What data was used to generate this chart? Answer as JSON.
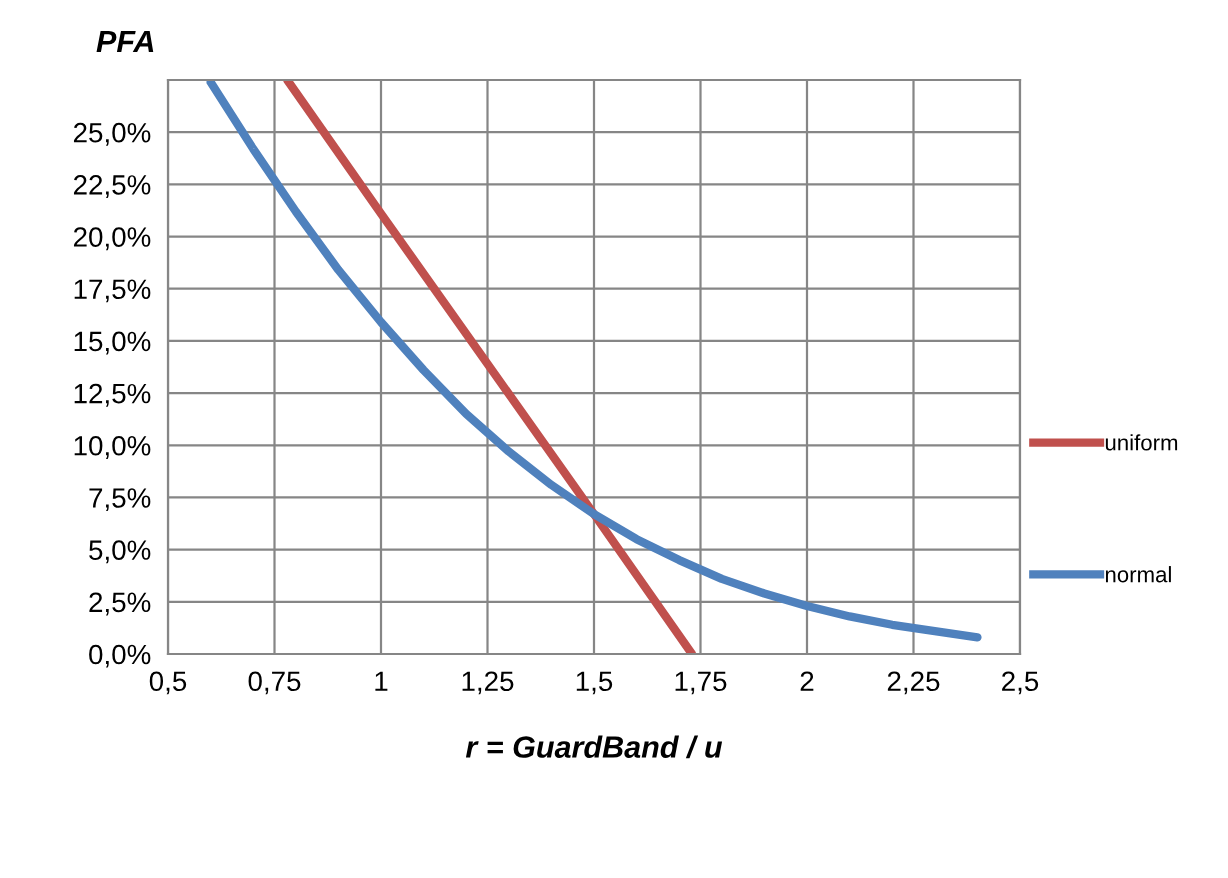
{
  "chart_data": {
    "type": "line",
    "ylabel": "PFA",
    "xlabel": "r = GuardBand / u",
    "series": [
      {
        "name": "uniform",
        "color": "#c0504d",
        "x": [
          0.78,
          1.0,
          1.25,
          1.5,
          1.73
        ],
        "values": [
          27.5,
          21.1,
          13.9,
          6.7,
          0.0
        ]
      },
      {
        "name": "normal",
        "color": "#4f81bd",
        "x": [
          0.6,
          0.7,
          0.8,
          0.9,
          1.0,
          1.1,
          1.2,
          1.3,
          1.4,
          1.5,
          1.6,
          1.7,
          1.8,
          1.9,
          2.0,
          2.1,
          2.2,
          2.3,
          2.4
        ],
        "values": [
          27.4,
          24.2,
          21.2,
          18.4,
          15.9,
          13.6,
          11.5,
          9.7,
          8.1,
          6.7,
          5.5,
          4.5,
          3.6,
          2.9,
          2.3,
          1.8,
          1.4,
          1.1,
          0.8
        ]
      }
    ],
    "xlim": [
      0.5,
      2.5
    ],
    "xticks": [
      {
        "value": 0.5,
        "label": "0,5"
      },
      {
        "value": 0.75,
        "label": "0,75"
      },
      {
        "value": 1,
        "label": "1"
      },
      {
        "value": 1.25,
        "label": "1,25"
      },
      {
        "value": 1.5,
        "label": "1,5"
      },
      {
        "value": 1.75,
        "label": "1,75"
      },
      {
        "value": 2,
        "label": "2"
      },
      {
        "value": 2.25,
        "label": "2,25"
      },
      {
        "value": 2.5,
        "label": "2,5"
      }
    ],
    "ylim": [
      0,
      27.5
    ],
    "yticks": [
      {
        "value": 0,
        "label": "0,0%"
      },
      {
        "value": 2.5,
        "label": "2,5%"
      },
      {
        "value": 5,
        "label": "5,0%"
      },
      {
        "value": 7.5,
        "label": "7,5%"
      },
      {
        "value": 10,
        "label": "10,0%"
      },
      {
        "value": 12.5,
        "label": "12,5%"
      },
      {
        "value": 15,
        "label": "15,0%"
      },
      {
        "value": 17.5,
        "label": "17,5%"
      },
      {
        "value": 20,
        "label": "20,0%"
      },
      {
        "value": 22.5,
        "label": "22,5%"
      },
      {
        "value": 25,
        "label": "25,0%"
      },
      {
        "value": 27.5,
        "label": null
      }
    ],
    "grid": true,
    "legend": "right",
    "marker": "none",
    "line_style": "solid"
  }
}
